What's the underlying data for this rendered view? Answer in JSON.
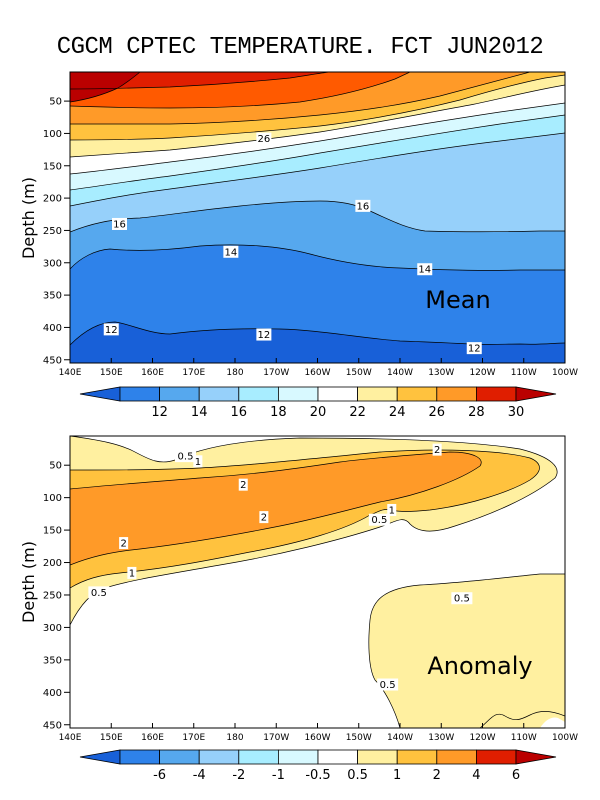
{
  "title": "CGCM CPTEC TEMPERATURE. FCT JUN2012",
  "colors": {
    "c6": "#ba0000",
    "c5": "#e01e00",
    "c4": "#ff5a00",
    "c3": "#ff9a28",
    "c2": "#ffc23e",
    "c1": "#fff0a0",
    "w": "#ffffff",
    "b1": "#d8f9ff",
    "b2": "#a8edff",
    "b3": "#96d0fa",
    "b4": "#56a8ee",
    "b5": "#2e82ea",
    "b6": "#1860d8"
  },
  "chart_data": [
    {
      "type": "contour",
      "panel_label": "Mean",
      "ylabel": "Depth (m)",
      "x_ticks": [
        "140E",
        "150E",
        "160E",
        "170E",
        "180",
        "170W",
        "160W",
        "150W",
        "140W",
        "130W",
        "120W",
        "110W",
        "100W"
      ],
      "y_ticks": [
        "50",
        "100",
        "150",
        "200",
        "250",
        "300",
        "350",
        "400",
        "450"
      ],
      "ylim": [
        455,
        5
      ],
      "colorbar": {
        "labels": [
          "12",
          "14",
          "16",
          "18",
          "20",
          "22",
          "24",
          "26",
          "28",
          "30"
        ],
        "colors": [
          "#1860d8",
          "#2e82ea",
          "#56a8ee",
          "#96d0fa",
          "#a8edff",
          "#d8f9ff",
          "#ffffff",
          "#fff0a0",
          "#ffc23e",
          "#ff9a28",
          "#e01e00",
          "#ba0000"
        ]
      },
      "contour_labels": [
        {
          "text": "26",
          "lon": -173,
          "depth": 108
        },
        {
          "text": "16",
          "lon": 152,
          "depth": 240
        },
        {
          "text": "16",
          "lon": -149,
          "depth": 212
        },
        {
          "text": "14",
          "lon": 179,
          "depth": 283
        },
        {
          "text": "14",
          "lon": -134,
          "depth": 310
        },
        {
          "text": "12",
          "lon": 150,
          "depth": 403
        },
        {
          "text": "12",
          "lon": -173,
          "depth": 411
        },
        {
          "text": "12",
          "lon": -122,
          "depth": 432
        }
      ]
    },
    {
      "type": "contour",
      "panel_label": "Anomaly",
      "ylabel": "Depth (m)",
      "x_ticks": [
        "140E",
        "150E",
        "160E",
        "170E",
        "180",
        "170W",
        "160W",
        "150W",
        "140W",
        "130W",
        "120W",
        "110W",
        "100W"
      ],
      "y_ticks": [
        "50",
        "100",
        "150",
        "200",
        "250",
        "300",
        "350",
        "400",
        "450"
      ],
      "ylim": [
        455,
        5
      ],
      "colorbar": {
        "labels": [
          "-6",
          "-4",
          "-2",
          "-1",
          "-0.5",
          "0.5",
          "1",
          "2",
          "4",
          "6"
        ],
        "colors": [
          "#1860d8",
          "#2e82ea",
          "#56a8ee",
          "#96d0fa",
          "#a8edff",
          "#d8f9ff",
          "#ffffff",
          "#fff0a0",
          "#ffc23e",
          "#ff9a28",
          "#e01e00",
          "#ba0000"
        ]
      },
      "contour_labels": [
        {
          "text": "0.5",
          "lon": 168,
          "depth": 36
        },
        {
          "text": "1",
          "lon": 171,
          "depth": 44
        },
        {
          "text": "2",
          "lon": -131,
          "depth": 26
        },
        {
          "text": "2",
          "lon": -178,
          "depth": 80
        },
        {
          "text": "2",
          "lon": -173,
          "depth": 130
        },
        {
          "text": "2",
          "lon": 153,
          "depth": 170
        },
        {
          "text": "1",
          "lon": -142,
          "depth": 119
        },
        {
          "text": "0.5",
          "lon": -145,
          "depth": 134
        },
        {
          "text": "1",
          "lon": 155,
          "depth": 216
        },
        {
          "text": "0.5",
          "lon": 147,
          "depth": 246
        },
        {
          "text": "0.5",
          "lon": -125,
          "depth": 255
        },
        {
          "text": "0.5",
          "lon": -143,
          "depth": 388
        }
      ]
    }
  ]
}
